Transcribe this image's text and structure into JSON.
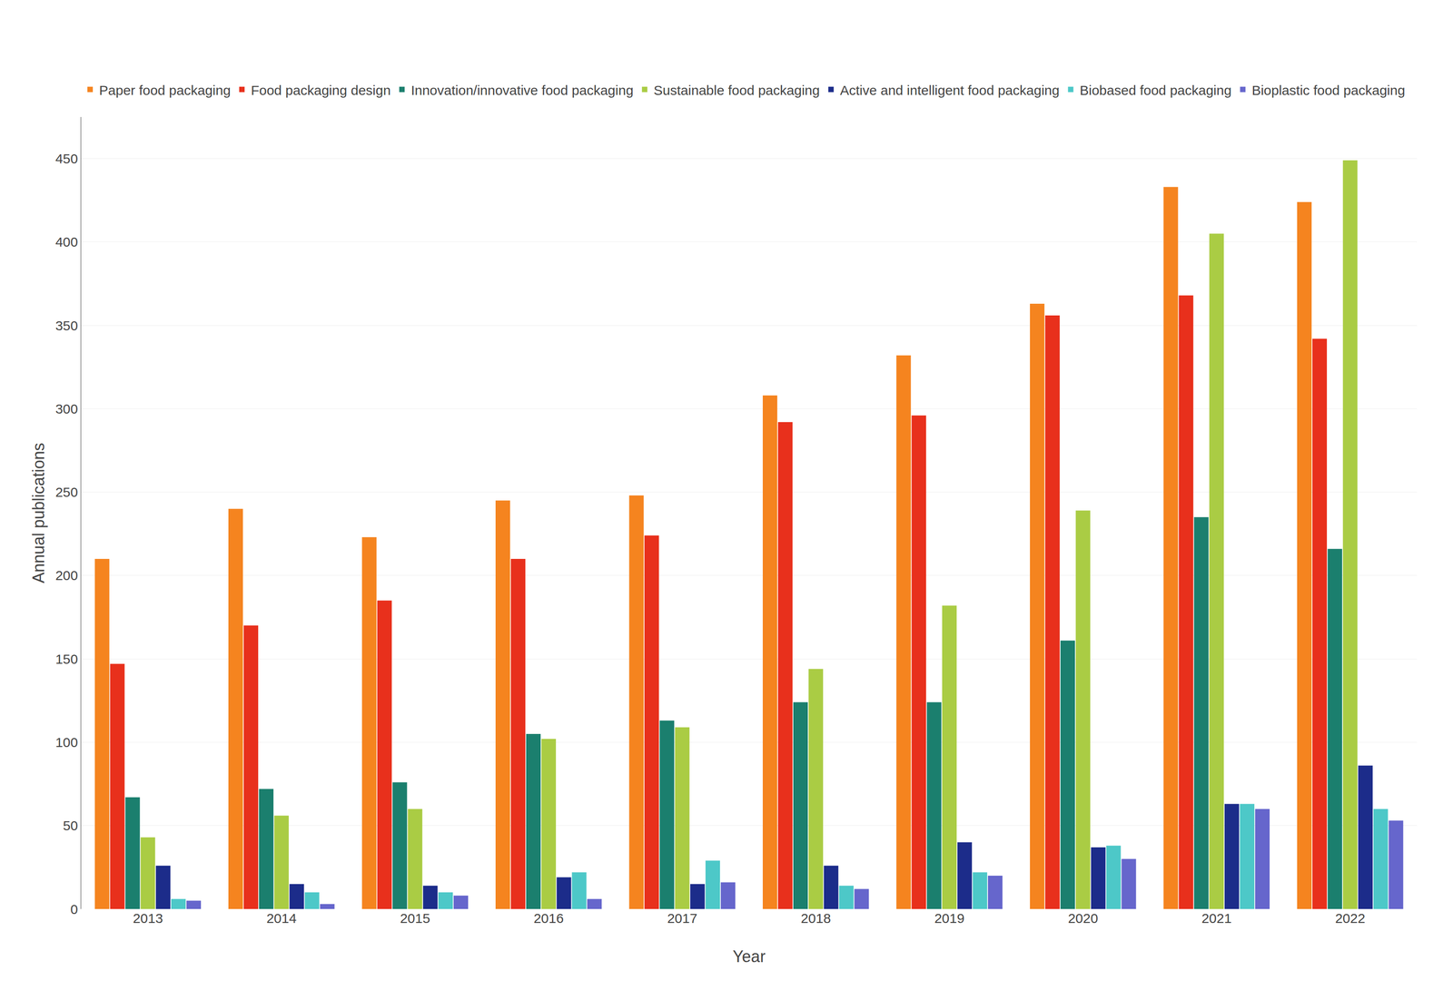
{
  "chart_data": {
    "type": "bar",
    "xlabel": "Year",
    "ylabel": "Annual publications",
    "categories": [
      "2013",
      "2014",
      "2015",
      "2016",
      "2017",
      "2018",
      "2019",
      "2020",
      "2021",
      "2022"
    ],
    "series": [
      {
        "name": "Paper food packaging",
        "color": "#F5841F",
        "values": [
          210,
          240,
          223,
          245,
          248,
          308,
          332,
          363,
          433,
          424
        ]
      },
      {
        "name": "Food packaging design",
        "color": "#E8301C",
        "values": [
          147,
          170,
          185,
          210,
          224,
          292,
          296,
          356,
          368,
          342
        ]
      },
      {
        "name": "Innovation/innovative food packaging",
        "color": "#1B7F6E",
        "values": [
          67,
          72,
          76,
          105,
          113,
          124,
          124,
          161,
          235,
          216
        ]
      },
      {
        "name": "Sustainable food packaging",
        "color": "#AACC44",
        "values": [
          43,
          56,
          60,
          102,
          109,
          144,
          182,
          239,
          405,
          449
        ]
      },
      {
        "name": "Active and intelligent food packaging",
        "color": "#1C2C8A",
        "values": [
          26,
          15,
          14,
          19,
          15,
          26,
          40,
          37,
          63,
          86
        ]
      },
      {
        "name": "Biobased food packaging",
        "color": "#4DC8C8",
        "values": [
          6,
          10,
          10,
          22,
          29,
          14,
          22,
          38,
          63,
          60
        ]
      },
      {
        "name": "Bioplastic food packaging",
        "color": "#6666CC",
        "values": [
          5,
          3,
          8,
          6,
          16,
          12,
          20,
          30,
          60,
          53
        ]
      }
    ],
    "ylim": [
      0,
      475
    ],
    "yticks": [
      0,
      50,
      100,
      150,
      200,
      250,
      300,
      350,
      400,
      450
    ],
    "grid": true,
    "legend": "top"
  }
}
